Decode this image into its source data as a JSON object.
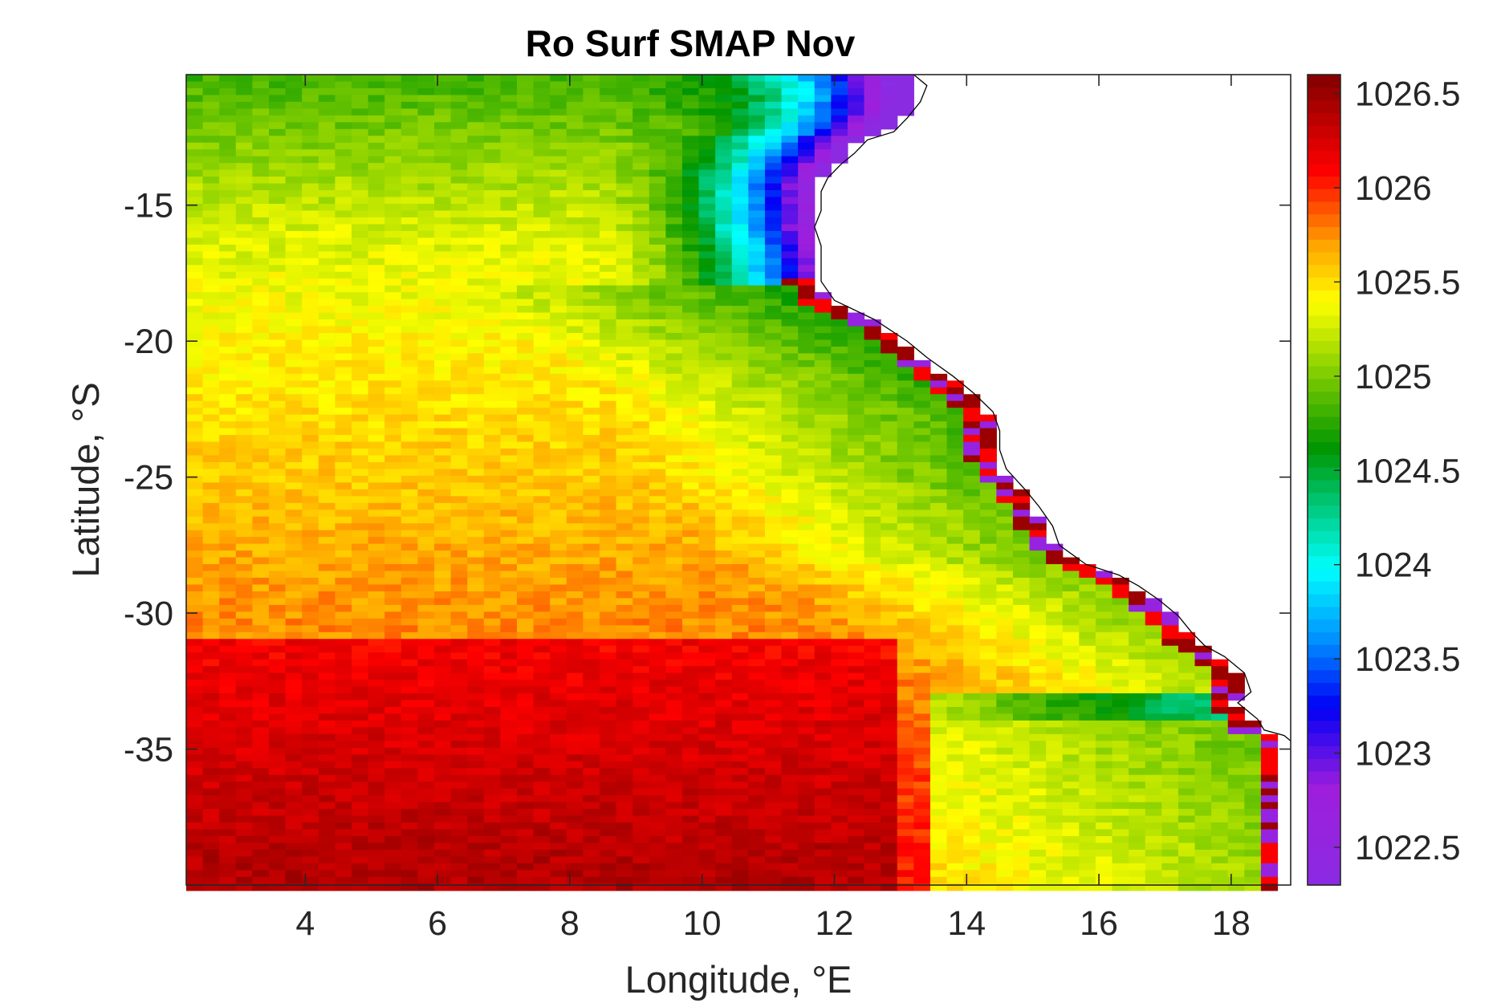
{
  "chart_data": {
    "type": "heatmap",
    "title": "Ro Surf SMAP Nov",
    "xlabel": "Longitude, °E",
    "ylabel": "Latitude, °S",
    "xlim": [
      2.2,
      18.9
    ],
    "ylim": [
      -40,
      -10.2
    ],
    "x_ticks": [
      4,
      6,
      8,
      10,
      12,
      14,
      16,
      18
    ],
    "x_tick_labels": [
      "4",
      "6",
      "8",
      "10",
      "12",
      "14",
      "16",
      "18"
    ],
    "y_ticks": [
      -15,
      -20,
      -25,
      -30,
      -35
    ],
    "y_tick_labels": [
      "-15",
      "-20",
      "-25",
      "-30",
      "-35"
    ],
    "colorbar": {
      "range": [
        1022.3,
        1026.6
      ],
      "ticks": [
        1022.5,
        1023,
        1023.5,
        1024,
        1024.5,
        1025,
        1025.5,
        1026,
        1026.5
      ],
      "tick_labels": [
        "1022.5",
        "1023",
        "1023.5",
        "1024",
        "1024.5",
        "1025",
        "1025.5",
        "1026",
        "1026.5"
      ],
      "colormap": "jet-like spectral (purple → blue → cyan → green → yellow → orange → red → dark red)"
    },
    "grid": false,
    "cell_size_deg": 0.25,
    "coastline_points": [
      [
        13.2,
        -10.2
      ],
      [
        13.4,
        -10.6
      ],
      [
        13.3,
        -11.2
      ],
      [
        13.1,
        -11.8
      ],
      [
        12.9,
        -12.3
      ],
      [
        12.5,
        -12.6
      ],
      [
        12.3,
        -13.1
      ],
      [
        12.1,
        -13.5
      ],
      [
        11.9,
        -14.0
      ],
      [
        11.8,
        -14.5
      ],
      [
        11.8,
        -15.2
      ],
      [
        11.7,
        -15.8
      ],
      [
        11.8,
        -16.5
      ],
      [
        11.8,
        -17.2
      ],
      [
        11.8,
        -17.8
      ],
      [
        12.0,
        -18.5
      ],
      [
        12.6,
        -19.2
      ],
      [
        13.1,
        -20.0
      ],
      [
        13.4,
        -20.6
      ],
      [
        13.8,
        -21.3
      ],
      [
        14.1,
        -21.9
      ],
      [
        14.4,
        -22.6
      ],
      [
        14.5,
        -23.3
      ],
      [
        14.5,
        -24.0
      ],
      [
        14.6,
        -24.7
      ],
      [
        14.9,
        -25.5
      ],
      [
        15.1,
        -26.1
      ],
      [
        15.3,
        -26.8
      ],
      [
        15.4,
        -27.5
      ],
      [
        15.8,
        -28.2
      ],
      [
        16.3,
        -28.6
      ],
      [
        16.6,
        -29.0
      ],
      [
        16.9,
        -29.5
      ],
      [
        17.2,
        -30.1
      ],
      [
        17.4,
        -30.7
      ],
      [
        17.6,
        -31.2
      ],
      [
        17.9,
        -31.6
      ],
      [
        18.2,
        -32.2
      ],
      [
        18.3,
        -32.9
      ],
      [
        18.1,
        -33.3
      ],
      [
        18.4,
        -33.9
      ],
      [
        18.5,
        -34.3
      ],
      [
        18.8,
        -34.5
      ],
      [
        18.9,
        -34.7
      ]
    ],
    "regions": [
      {
        "zone": "northwest offshore (3°–9°E, 10°–15°S)",
        "value_range": [
          1024.8,
          1025.3
        ],
        "color_desc": "green to yellow-green"
      },
      {
        "zone": "Angola coast (10°–13°E, 10°–14°S)",
        "value_range": [
          1022.5,
          1023.5
        ],
        "color_desc": "purple / blue"
      },
      {
        "zone": "Angola shelf edge (9.5°–11.5°E, 12°–16°S)",
        "value_range": [
          1023.8,
          1024.6
        ],
        "color_desc": "cyan to dark green"
      },
      {
        "zone": "central basin (3°–10°E, 15°–28°S)",
        "value_range": [
          1025.3,
          1025.7
        ],
        "color_desc": "yellow / orange"
      },
      {
        "zone": "Benguela upwelling band (11°–16°E, 20°–33°S)",
        "value_range": [
          1024.6,
          1025.0
        ],
        "color_desc": "green"
      },
      {
        "zone": "southern open ocean (2°–13°E, 32°–40°S)",
        "value_range": [
          1025.9,
          1026.3
        ],
        "color_desc": "red"
      },
      {
        "zone": "Cape region (14°–19°E, 34°–40°S)",
        "value_range": [
          1024.8,
          1025.5
        ],
        "color_desc": "yellow / green"
      },
      {
        "zone": "coastal strip (12°–18.5°E, 18°–34°S)",
        "value_range": [
          1022.5,
          1026.6
        ],
        "color_desc": "alternating purple, red, dark red"
      }
    ]
  }
}
